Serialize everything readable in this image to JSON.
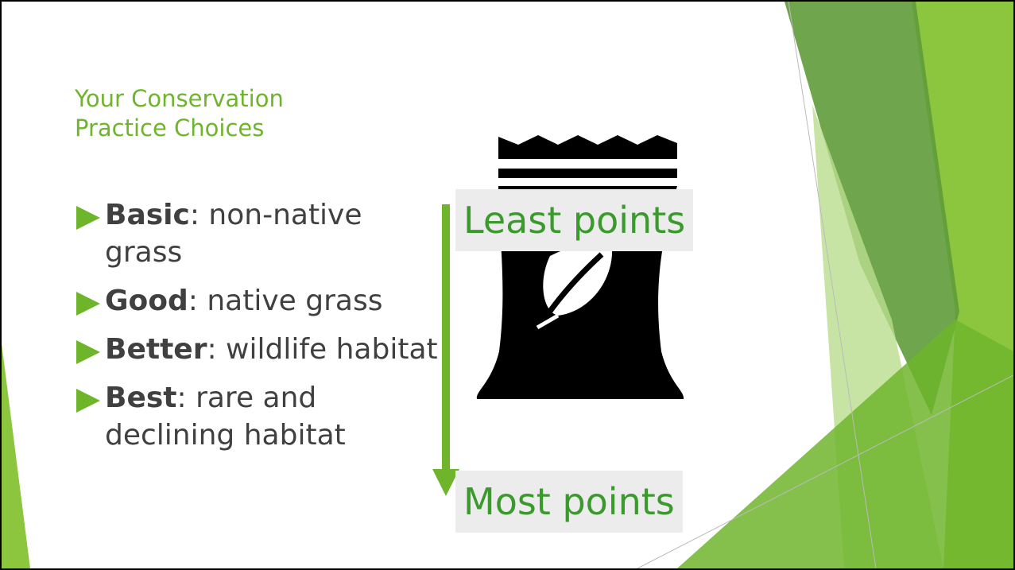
{
  "title": "Your Conservation Practice Choices",
  "bullets": [
    {
      "label": "Basic",
      "text": ": non-native grass"
    },
    {
      "label": "Good",
      "text": ": native grass"
    },
    {
      "label": "Better",
      "text": ": wildlife habitat"
    },
    {
      "label": "Best",
      "text": ": rare and declining habitat"
    }
  ],
  "scale": {
    "top": "Least points",
    "bottom": "Most points"
  }
}
